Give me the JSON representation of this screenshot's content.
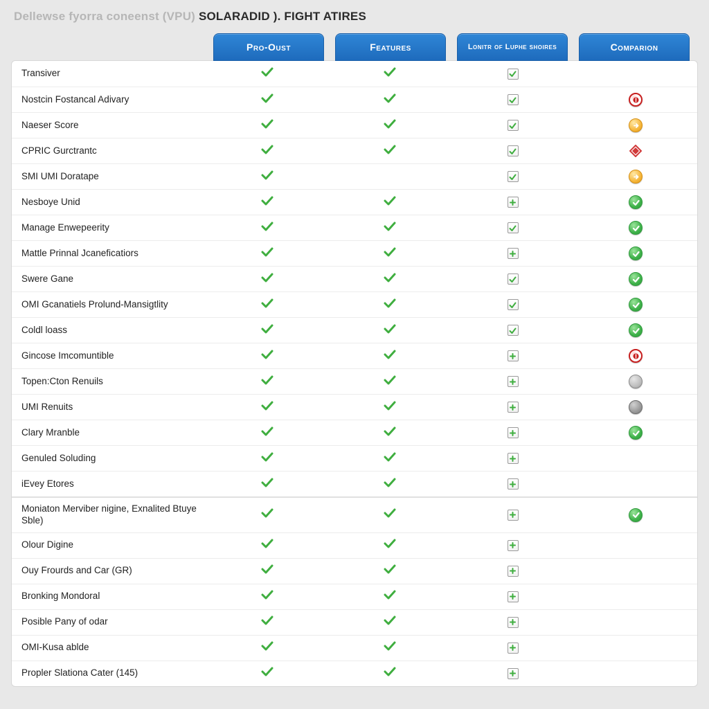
{
  "title": {
    "prefix": "Dellewse fyorra coneenst (VPU) ",
    "strong": "SOLARADID ). FIGHT ATIRES"
  },
  "tabs": [
    {
      "label": "Pro-Oust"
    },
    {
      "label": "Features"
    },
    {
      "label": "Lonitr of Luphe shoires",
      "twoLine": true
    },
    {
      "label": "Comparion"
    }
  ],
  "columns_legend": [
    "col1 = green check",
    "col2 = green check",
    "col3 = square checkbox (checked green / plus green)",
    "col4 = status badge"
  ],
  "rows": [
    {
      "label": "Transiver",
      "c1": "check",
      "c2": "check",
      "c3": "sq-check",
      "c4": ""
    },
    {
      "label": "Nostcin Fostancal Adivary",
      "c1": "check",
      "c2": "check",
      "c3": "sq-check",
      "c4": "red"
    },
    {
      "label": "Naeser Score",
      "c1": "check",
      "c2": "check",
      "c3": "sq-check",
      "c4": "amber"
    },
    {
      "label": "CPRIC Gurctrantc",
      "c1": "check",
      "c2": "check",
      "c3": "sq-check",
      "c4": "diamond"
    },
    {
      "label": "SMI UMI Doratape",
      "c1": "check",
      "c2": "",
      "c3": "sq-check",
      "c4": "amber"
    },
    {
      "label": "Nesboye Unid",
      "c1": "check",
      "c2": "check",
      "c3": "sq-plus",
      "c4": "green"
    },
    {
      "label": "Manage Enwepeerity",
      "c1": "check",
      "c2": "check",
      "c3": "sq-check",
      "c4": "green"
    },
    {
      "label": "Mattle Prinnal Jcaneficatiors",
      "c1": "check",
      "c2": "check",
      "c3": "sq-plus",
      "c4": "green"
    },
    {
      "label": "Swere Gane",
      "c1": "check",
      "c2": "check",
      "c3": "sq-check",
      "c4": "green"
    },
    {
      "label": "OMI Gcanatiels Prolund-Mansigtlity",
      "c1": "check",
      "c2": "check",
      "c3": "sq-check",
      "c4": "green"
    },
    {
      "label": "Coldl loass",
      "c1": "check",
      "c2": "check",
      "c3": "sq-check",
      "c4": "green"
    },
    {
      "label": "Gincose Imcomuntible",
      "c1": "check",
      "c2": "check",
      "c3": "sq-plus",
      "c4": "red"
    },
    {
      "label": "Topen:Cton Renuils",
      "c1": "check",
      "c2": "check",
      "c3": "sq-plus",
      "c4": "gray"
    },
    {
      "label": "UMI Renuits",
      "c1": "check",
      "c2": "check",
      "c3": "sq-plus",
      "c4": "dgray"
    },
    {
      "label": "Clary Mranble",
      "c1": "check",
      "c2": "check",
      "c3": "sq-plus",
      "c4": "green"
    },
    {
      "label": "Genuled Soluding",
      "c1": "check",
      "c2": "check",
      "c3": "sq-plus",
      "c4": ""
    },
    {
      "label": "iEvey Etores",
      "c1": "check",
      "c2": "check",
      "c3": "sq-plus",
      "c4": ""
    },
    {
      "label": "Moniaton Merviber nigine, Exnalited Btuye Sble)",
      "section": true,
      "c1": "check",
      "c2": "check",
      "c3": "sq-plus",
      "c4": "green"
    },
    {
      "label": "Olour Digine",
      "c1": "check",
      "c2": "check",
      "c3": "sq-plus",
      "c4": ""
    },
    {
      "label": "Ouy Frourds and Car (GR)",
      "c1": "check",
      "c2": "check",
      "c3": "sq-plus",
      "c4": ""
    },
    {
      "label": "Bronking Mondoral",
      "c1": "check",
      "c2": "check",
      "c3": "sq-plus",
      "c4": ""
    },
    {
      "label": "Posible Pany of odar",
      "c1": "check",
      "c2": "check",
      "c3": "sq-plus",
      "c4": ""
    },
    {
      "label": "OMI-Kusa ablde",
      "c1": "check",
      "c2": "check",
      "c3": "sq-plus",
      "c4": ""
    },
    {
      "label": "Propler Slationa Cater (145)",
      "c1": "check",
      "c2": "check",
      "c3": "sq-plus",
      "c4": ""
    }
  ],
  "colors": {
    "tab_bg_top": "#2f86d6",
    "tab_bg_bottom": "#1e6bbd",
    "check_green": "#3fae3f",
    "sq_border": "#9a9a9a",
    "badge_green": "#3fb24a",
    "badge_red": "#c71f1f",
    "badge_amber": "#f6b73c",
    "badge_gray": "#9d9d9d",
    "diamond_red": "#d13a3a",
    "row_border": "#ececec",
    "page_bg": "#e8e8e8",
    "panel_bg": "#ffffff"
  }
}
